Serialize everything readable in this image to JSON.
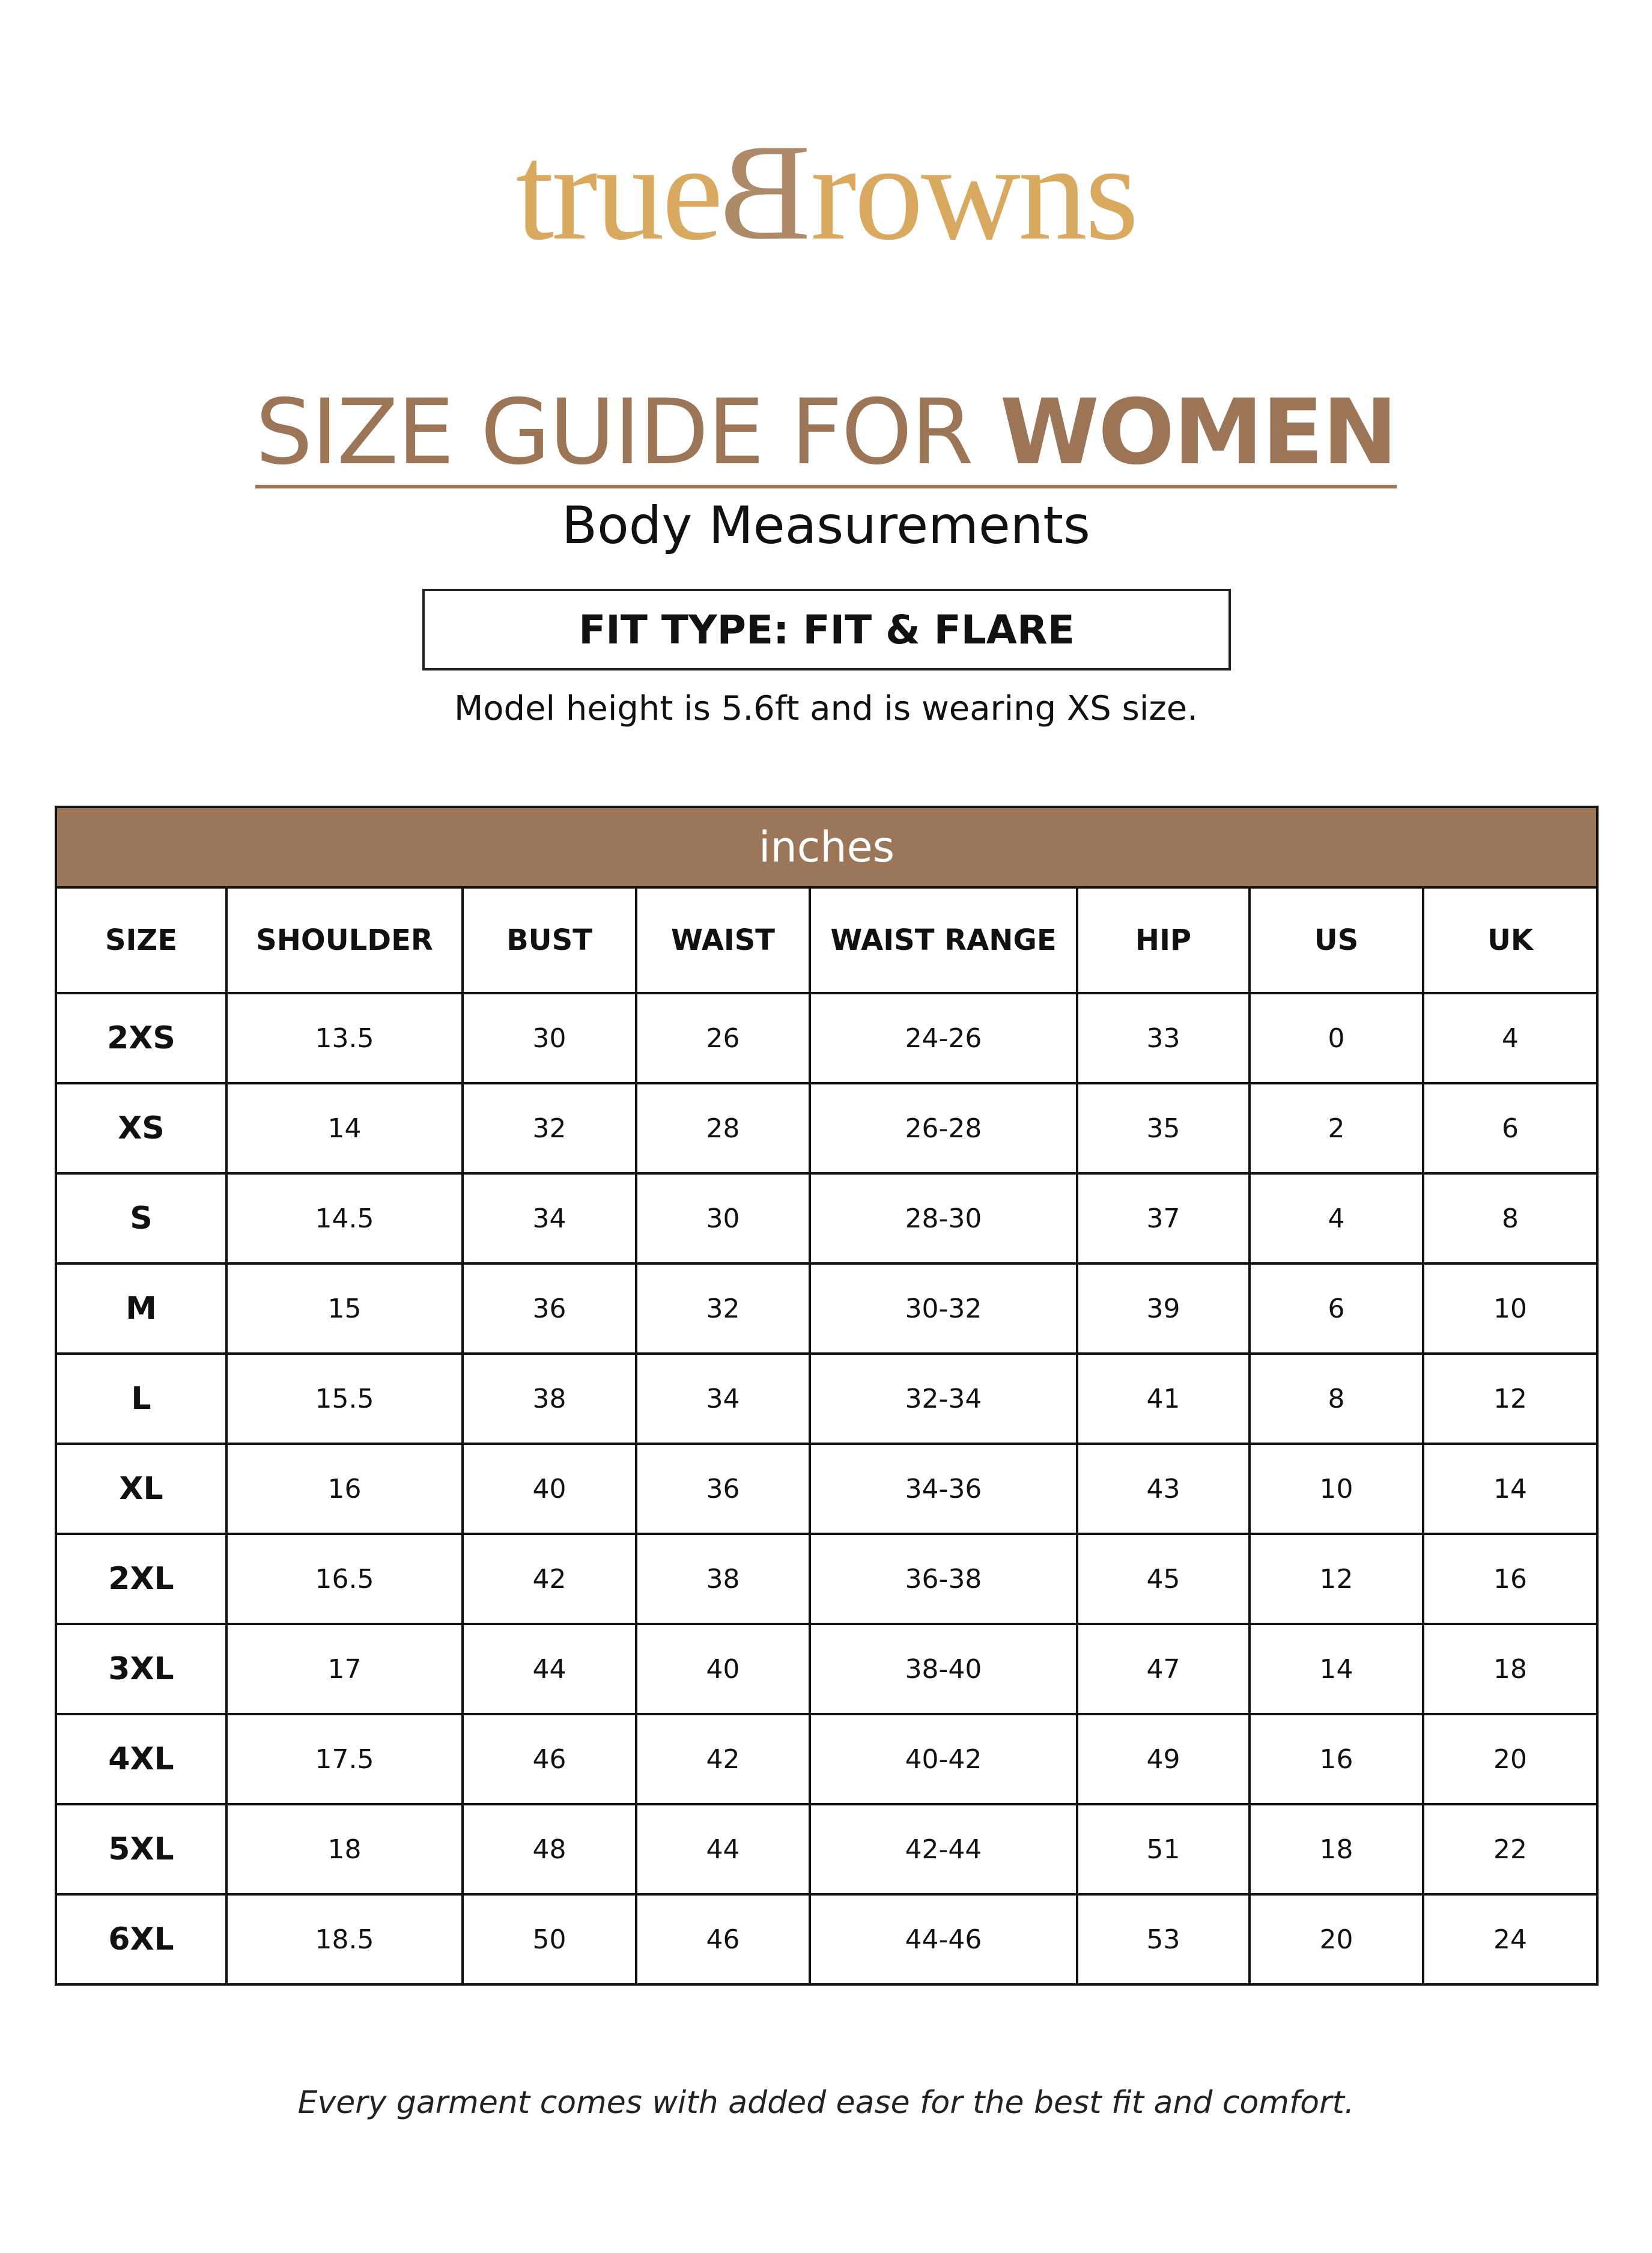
{
  "brand": {
    "logo_text": "trueBrowns",
    "logo_part1": "true",
    "logo_b": "B",
    "logo_part2": "rowns",
    "colors": {
      "gold": "#d9a95f",
      "b": "#ae8a68"
    }
  },
  "title": {
    "light": "SIZE GUIDE FOR ",
    "bold": "WOMEN",
    "color": "#9c7456"
  },
  "subtitle": "Body Measurements",
  "fit_type": "FIT TYPE: FIT & FLARE",
  "model_note": "Model height is 5.6ft and is wearing XS size.",
  "table": {
    "unit": "inches",
    "band_color": "#9c7658",
    "columns": [
      "SIZE",
      "SHOULDER",
      "BUST",
      "WAIST",
      "WAIST RANGE",
      "HIP",
      "US",
      "UK"
    ],
    "rows": [
      [
        "2XS",
        "13.5",
        "30",
        "26",
        "24-26",
        "33",
        "0",
        "4"
      ],
      [
        "XS",
        "14",
        "32",
        "28",
        "26-28",
        "35",
        "2",
        "6"
      ],
      [
        "S",
        "14.5",
        "34",
        "30",
        "28-30",
        "37",
        "4",
        "8"
      ],
      [
        "M",
        "15",
        "36",
        "32",
        "30-32",
        "39",
        "6",
        "10"
      ],
      [
        "L",
        "15.5",
        "38",
        "34",
        "32-34",
        "41",
        "8",
        "12"
      ],
      [
        "XL",
        "16",
        "40",
        "36",
        "34-36",
        "43",
        "10",
        "14"
      ],
      [
        "2XL",
        "16.5",
        "42",
        "38",
        "36-38",
        "45",
        "12",
        "16"
      ],
      [
        "3XL",
        "17",
        "44",
        "40",
        "38-40",
        "47",
        "14",
        "18"
      ],
      [
        "4XL",
        "17.5",
        "46",
        "42",
        "40-42",
        "49",
        "16",
        "20"
      ],
      [
        "5XL",
        "18",
        "48",
        "44",
        "42-44",
        "51",
        "18",
        "22"
      ],
      [
        "6XL",
        "18.5",
        "50",
        "46",
        "44-46",
        "53",
        "20",
        "24"
      ]
    ]
  },
  "footer": "Every garment comes with added ease for the best fit and comfort."
}
